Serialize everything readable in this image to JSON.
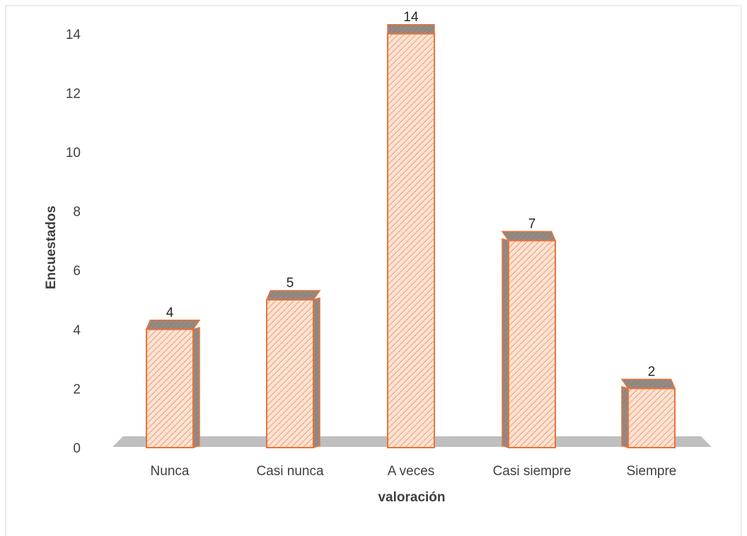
{
  "chart_data": {
    "type": "bar",
    "style": "3d-column",
    "categories": [
      "Nunca",
      "Casi nunca",
      "A veces",
      "Casi siempre",
      "Siempre"
    ],
    "values": [
      4,
      5,
      14,
      7,
      2
    ],
    "title": "",
    "xlabel": "valoración",
    "ylabel": "Encuestados",
    "ylim": [
      0,
      14
    ],
    "yticks": [
      0,
      2,
      4,
      6,
      8,
      10,
      12,
      14
    ],
    "grid": false,
    "legend": "none",
    "data_labels": true,
    "colors": {
      "bar_fill": "#fbe3d6",
      "bar_stripe": "#f08a4b",
      "bar_stroke": "#e8743b",
      "bar_side": "#7f7f7f",
      "floor": "#bfbfbf",
      "frame": "#d9d9d9",
      "text": "#404040"
    }
  }
}
